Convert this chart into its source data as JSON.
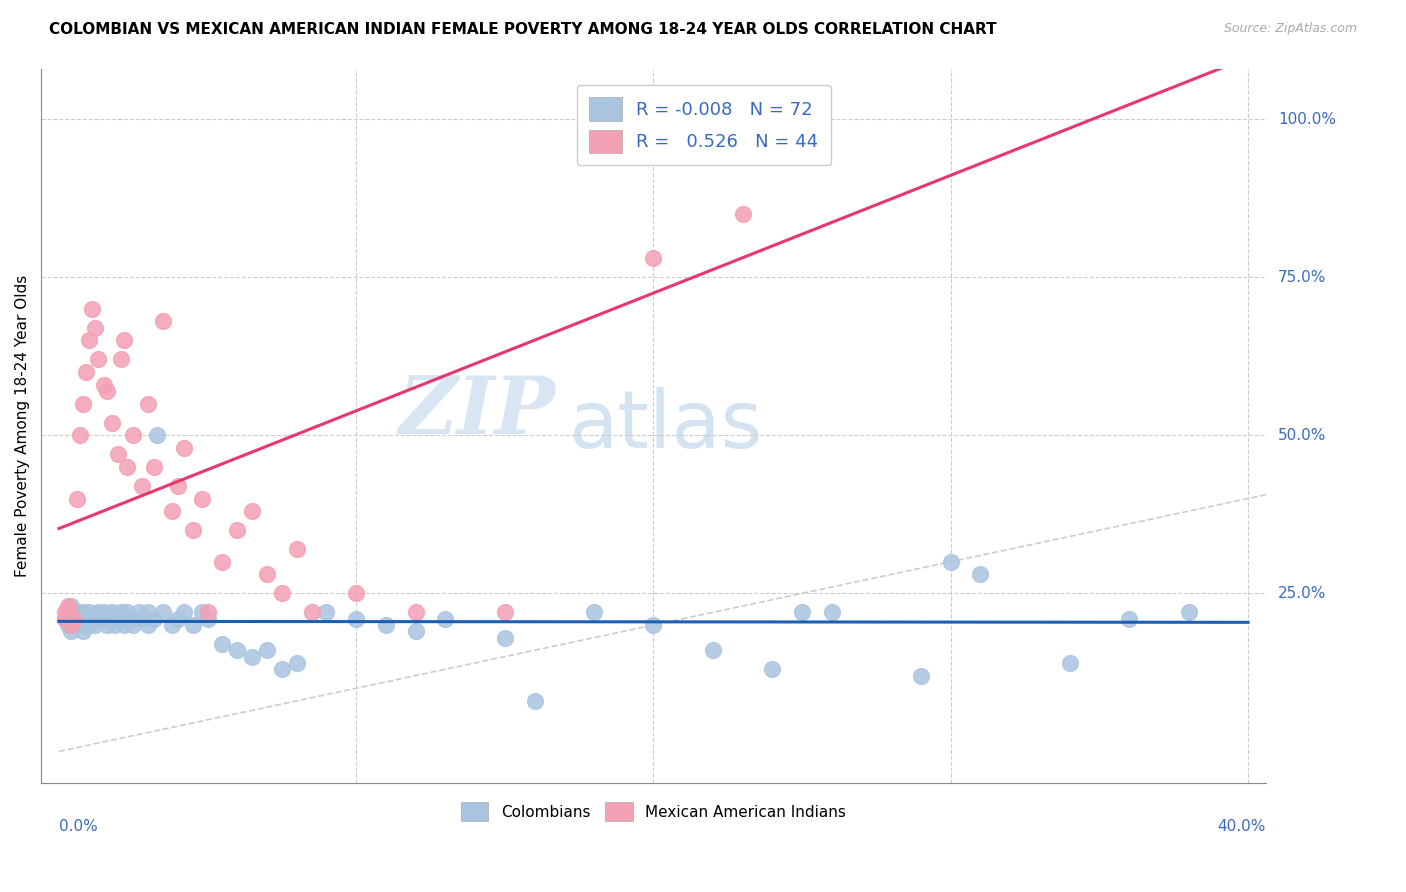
{
  "title": "COLOMBIAN VS MEXICAN AMERICAN INDIAN FEMALE POVERTY AMONG 18-24 YEAR OLDS CORRELATION CHART",
  "source": "Source: ZipAtlas.com",
  "ylabel": "Female Poverty Among 18-24 Year Olds",
  "colombian_R": "-0.008",
  "colombian_N": "72",
  "mexican_R": "0.526",
  "mexican_N": "44",
  "colombian_color": "#aac4e0",
  "mexican_color": "#f4a0b4",
  "colombian_line_color": "#1a5fb4",
  "mexican_line_color": "#e8366e",
  "diagonal_color": "#cccccc",
  "watermark_zip": "ZIP",
  "watermark_atlas": "atlas",
  "xlim": [
    0.0,
    0.4
  ],
  "ylim": [
    0.0,
    1.05
  ],
  "colombians_x": [
    0.002,
    0.003,
    0.003,
    0.004,
    0.004,
    0.005,
    0.005,
    0.005,
    0.006,
    0.006,
    0.007,
    0.008,
    0.008,
    0.009,
    0.01,
    0.01,
    0.011,
    0.012,
    0.013,
    0.014,
    0.015,
    0.015,
    0.016,
    0.017,
    0.018,
    0.018,
    0.019,
    0.02,
    0.021,
    0.022,
    0.022,
    0.023,
    0.025,
    0.025,
    0.027,
    0.028,
    0.03,
    0.03,
    0.032,
    0.033,
    0.035,
    0.038,
    0.04,
    0.042,
    0.045,
    0.048,
    0.05,
    0.055,
    0.06,
    0.065,
    0.07,
    0.075,
    0.08,
    0.09,
    0.1,
    0.11,
    0.12,
    0.13,
    0.15,
    0.16,
    0.18,
    0.2,
    0.22,
    0.24,
    0.26,
    0.29,
    0.31,
    0.34,
    0.36,
    0.38,
    0.3,
    0.25
  ],
  "colombians_y": [
    0.21,
    0.22,
    0.2,
    0.23,
    0.19,
    0.22,
    0.21,
    0.2,
    0.22,
    0.2,
    0.21,
    0.22,
    0.19,
    0.21,
    0.2,
    0.22,
    0.21,
    0.2,
    0.22,
    0.21,
    0.21,
    0.22,
    0.2,
    0.21,
    0.22,
    0.21,
    0.2,
    0.21,
    0.22,
    0.2,
    0.21,
    0.22,
    0.21,
    0.2,
    0.22,
    0.21,
    0.22,
    0.2,
    0.21,
    0.5,
    0.22,
    0.2,
    0.21,
    0.22,
    0.2,
    0.22,
    0.21,
    0.17,
    0.16,
    0.15,
    0.16,
    0.13,
    0.14,
    0.22,
    0.21,
    0.2,
    0.19,
    0.21,
    0.18,
    0.08,
    0.22,
    0.2,
    0.16,
    0.13,
    0.22,
    0.12,
    0.28,
    0.14,
    0.21,
    0.22,
    0.3,
    0.22
  ],
  "mexicans_x": [
    0.002,
    0.002,
    0.003,
    0.003,
    0.004,
    0.005,
    0.006,
    0.007,
    0.008,
    0.009,
    0.01,
    0.011,
    0.012,
    0.013,
    0.015,
    0.016,
    0.018,
    0.02,
    0.021,
    0.022,
    0.023,
    0.025,
    0.028,
    0.03,
    0.032,
    0.035,
    0.038,
    0.04,
    0.042,
    0.045,
    0.048,
    0.05,
    0.055,
    0.06,
    0.065,
    0.07,
    0.075,
    0.08,
    0.085,
    0.1,
    0.12,
    0.15,
    0.2,
    0.23
  ],
  "mexicans_y": [
    0.22,
    0.21,
    0.23,
    0.22,
    0.2,
    0.21,
    0.4,
    0.5,
    0.55,
    0.6,
    0.65,
    0.7,
    0.67,
    0.62,
    0.58,
    0.57,
    0.52,
    0.47,
    0.62,
    0.65,
    0.45,
    0.5,
    0.42,
    0.55,
    0.45,
    0.68,
    0.38,
    0.42,
    0.48,
    0.35,
    0.4,
    0.22,
    0.3,
    0.35,
    0.38,
    0.28,
    0.25,
    0.32,
    0.22,
    0.25,
    0.22,
    0.22,
    0.78,
    0.85
  ]
}
